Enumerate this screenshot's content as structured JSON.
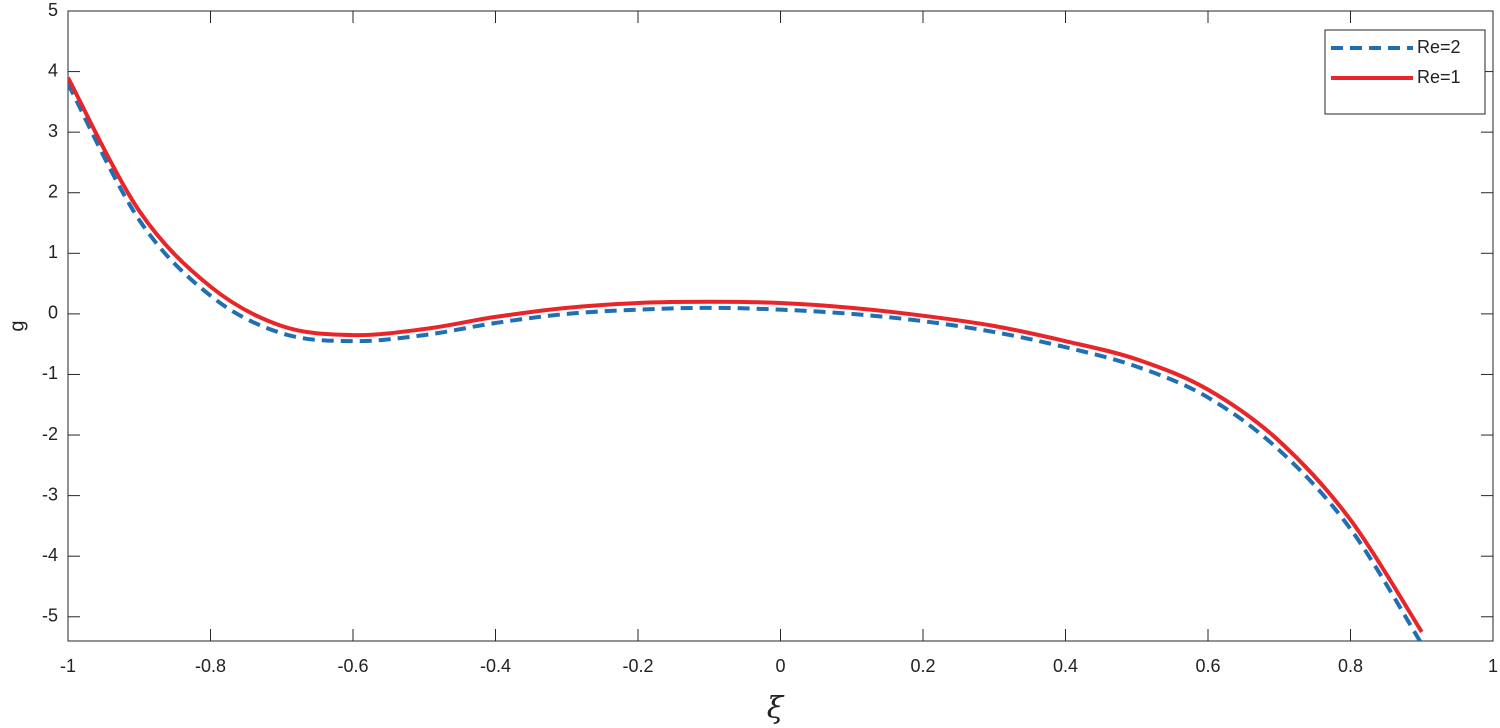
{
  "chart_data": {
    "type": "line",
    "xlabel": "ξ",
    "ylabel": "g",
    "x": [
      -1,
      -0.9,
      -0.8,
      -0.7,
      -0.6,
      -0.5,
      -0.4,
      -0.3,
      -0.2,
      -0.1,
      0,
      0.1,
      0.2,
      0.3,
      0.4,
      0.5,
      0.6,
      0.7,
      0.8,
      0.9
    ],
    "series": [
      {
        "name": "Re=2",
        "color": "#1f6fb5",
        "dash": true,
        "values": [
          3.8,
          1.55,
          0.3,
          -0.32,
          -0.45,
          -0.35,
          -0.15,
          0.0,
          0.07,
          0.1,
          0.07,
          0.0,
          -0.12,
          -0.3,
          -0.55,
          -0.87,
          -1.38,
          -2.25,
          -3.55,
          -5.45
        ]
      },
      {
        "name": "Re=1",
        "color": "#e8262a",
        "dash": false,
        "values": [
          3.9,
          1.7,
          0.45,
          -0.2,
          -0.35,
          -0.25,
          -0.05,
          0.1,
          0.18,
          0.2,
          0.18,
          0.1,
          -0.03,
          -0.2,
          -0.45,
          -0.75,
          -1.25,
          -2.1,
          -3.4,
          -5.25
        ]
      }
    ],
    "xlim": [
      -1,
      1
    ],
    "xticks": [
      -1,
      -0.8,
      -0.6,
      -0.4,
      -0.2,
      0,
      0.2,
      0.4,
      0.6,
      0.8,
      1
    ],
    "ylim": [
      -5.4,
      5
    ],
    "yticks": [
      -5,
      -4,
      -3,
      -2,
      -1,
      0,
      1,
      2,
      3,
      4,
      5
    ],
    "legend": "northeast",
    "grid": false
  }
}
